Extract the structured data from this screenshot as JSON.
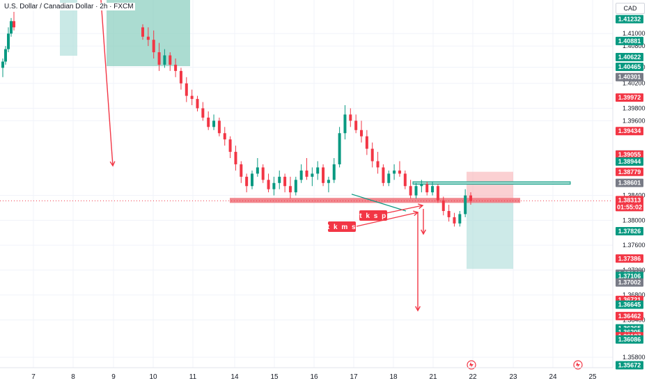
{
  "header": {
    "title": "U.S. Dollar / Canadian Dollar · 2h · FXCM",
    "currency": "CAD"
  },
  "chart_data": {
    "type": "candlestick",
    "title": "U.S. Dollar / Canadian Dollar · 2h · FXCM",
    "y_axis": {
      "range": [
        1.357,
        1.4145
      ],
      "ticks": [
        "1.41000",
        "1.40800",
        "1.40460",
        "1.40200",
        "1.39800",
        "1.39600",
        "1.38400",
        "1.38000",
        "1.37600",
        "1.37200",
        "1.36800",
        "1.36400",
        "1.35800"
      ]
    },
    "x_axis": {
      "ticks": [
        "7",
        "8",
        "9",
        "10",
        "11",
        "14",
        "15",
        "16",
        "17",
        "18",
        "21",
        "22",
        "23",
        "24",
        "25"
      ]
    },
    "price_labels": [
      {
        "value": "1.41232",
        "color": "#089981"
      },
      {
        "value": "1.40881",
        "color": "#089981"
      },
      {
        "value": "1.40622",
        "color": "#089981"
      },
      {
        "value": "1.40465",
        "color": "#089981"
      },
      {
        "value": "1.40301",
        "color": "#787b86"
      },
      {
        "value": "1.39972",
        "color": "#f23645"
      },
      {
        "value": "1.39434",
        "color": "#f23645"
      },
      {
        "value": "1.39057",
        "color": "#787b86"
      },
      {
        "value": "1.39055",
        "color": "#f23645"
      },
      {
        "value": "1.38944",
        "color": "#089981"
      },
      {
        "value": "1.38779",
        "color": "#f23645"
      },
      {
        "value": "1.38601",
        "color": "#787b86"
      },
      {
        "value": "1.38313",
        "color": "#f23645"
      },
      {
        "value": "1.38308",
        "color": "#787b86"
      },
      {
        "value": "1.37826",
        "color": "#089981"
      },
      {
        "value": "1.37386",
        "color": "#f23645"
      },
      {
        "value": "1.37141",
        "color": "#787b86"
      },
      {
        "value": "1.37106",
        "color": "#089981"
      },
      {
        "value": "1.37002",
        "color": "#787b86"
      },
      {
        "value": "1.36721",
        "color": "#f23645"
      },
      {
        "value": "1.36645",
        "color": "#089981"
      },
      {
        "value": "1.36462",
        "color": "#f23645"
      },
      {
        "value": "1.36265",
        "color": "#089981"
      },
      {
        "value": "1.36205",
        "color": "#089981"
      },
      {
        "value": "1.36137",
        "color": "#f23645"
      },
      {
        "value": "1.36086",
        "color": "#089981"
      },
      {
        "value": "1.35672",
        "color": "#089981"
      }
    ],
    "current_price": {
      "value": "1.38313",
      "countdown": "01:55:02",
      "color": "#f23645"
    },
    "annotations": [
      {
        "text": "t k s p",
        "color": "#f23645"
      },
      {
        "text": "t k m s",
        "color": "#f23645"
      }
    ],
    "candles_ohlc": [
      [
        1.4045,
        1.406,
        1.403,
        1.4055
      ],
      [
        1.4055,
        1.408,
        1.405,
        1.4075
      ],
      [
        1.4075,
        1.411,
        1.407,
        1.41
      ],
      [
        1.41,
        1.4125,
        1.4095,
        1.412
      ],
      [
        1.412,
        1.4135,
        1.4105,
        1.411
      ],
      [
        1.411,
        1.4115,
        1.409,
        1.4095
      ],
      [
        1.4095,
        1.411,
        1.408,
        1.409
      ],
      [
        1.409,
        1.4105,
        1.406,
        1.407
      ],
      [
        1.407,
        1.4085,
        1.404,
        1.405
      ],
      [
        1.405,
        1.4075,
        1.4045,
        1.4065
      ],
      [
        1.4065,
        1.407,
        1.404,
        1.405
      ],
      [
        1.405,
        1.406,
        1.403,
        1.404
      ],
      [
        1.404,
        1.4045,
        1.401,
        1.402
      ],
      [
        1.402,
        1.403,
        1.399,
        1.4
      ],
      [
        1.4,
        1.401,
        1.3985,
        1.3995
      ],
      [
        1.3995,
        1.4,
        1.3975,
        1.398
      ],
      [
        1.398,
        1.399,
        1.396,
        1.3965
      ],
      [
        1.3965,
        1.3975,
        1.3945,
        1.395
      ],
      [
        1.395,
        1.397,
        1.3945,
        1.396
      ],
      [
        1.396,
        1.3965,
        1.3935,
        1.394
      ],
      [
        1.394,
        1.395,
        1.392,
        1.393
      ],
      [
        1.393,
        1.3935,
        1.39,
        1.391
      ],
      [
        1.391,
        1.392,
        1.388,
        1.389
      ],
      [
        1.389,
        1.3895,
        1.386,
        1.387
      ],
      [
        1.387,
        1.3875,
        1.3845,
        1.3855
      ],
      [
        1.3855,
        1.388,
        1.385,
        1.3875
      ],
      [
        1.3875,
        1.39,
        1.387,
        1.3885
      ],
      [
        1.3885,
        1.389,
        1.386,
        1.3865
      ],
      [
        1.3865,
        1.3875,
        1.3845,
        1.385
      ],
      [
        1.385,
        1.387,
        1.384,
        1.386
      ],
      [
        1.386,
        1.388,
        1.385,
        1.387
      ],
      [
        1.387,
        1.3875,
        1.3845,
        1.3855
      ],
      [
        1.3855,
        1.387,
        1.3835,
        1.3845
      ],
      [
        1.3845,
        1.387,
        1.384,
        1.3865
      ],
      [
        1.3865,
        1.389,
        1.386,
        1.388
      ],
      [
        1.388,
        1.39,
        1.3865,
        1.387
      ],
      [
        1.387,
        1.3885,
        1.3855,
        1.3875
      ],
      [
        1.3875,
        1.3895,
        1.3865,
        1.3885
      ],
      [
        1.3885,
        1.389,
        1.3855,
        1.386
      ],
      [
        1.386,
        1.387,
        1.3845,
        1.3865
      ],
      [
        1.3865,
        1.39,
        1.386,
        1.389
      ],
      [
        1.389,
        1.395,
        1.3885,
        1.394
      ],
      [
        1.394,
        1.3985,
        1.393,
        1.397
      ],
      [
        1.397,
        1.398,
        1.395,
        1.396
      ],
      [
        1.396,
        1.397,
        1.394,
        1.3945
      ],
      [
        1.3945,
        1.396,
        1.3925,
        1.3935
      ],
      [
        1.3935,
        1.3945,
        1.3905,
        1.3915
      ],
      [
        1.3915,
        1.3925,
        1.3885,
        1.3895
      ],
      [
        1.3895,
        1.391,
        1.3875,
        1.3885
      ],
      [
        1.3885,
        1.389,
        1.3855,
        1.386
      ],
      [
        1.386,
        1.388,
        1.3855,
        1.3875
      ],
      [
        1.3875,
        1.389,
        1.3865,
        1.388
      ],
      [
        1.388,
        1.3895,
        1.387,
        1.3875
      ],
      [
        1.3875,
        1.388,
        1.385,
        1.3855
      ],
      [
        1.3855,
        1.3865,
        1.3835,
        1.384
      ],
      [
        1.384,
        1.386,
        1.3835,
        1.3855
      ],
      [
        1.3855,
        1.3865,
        1.3845,
        1.3858
      ],
      [
        1.3858,
        1.3862,
        1.384,
        1.3845
      ],
      [
        1.3845,
        1.3862,
        1.384,
        1.3855
      ],
      [
        1.3855,
        1.3858,
        1.3828,
        1.3832
      ],
      [
        1.3832,
        1.3838,
        1.3808,
        1.3815
      ],
      [
        1.3815,
        1.3825,
        1.3798,
        1.3805
      ],
      [
        1.3805,
        1.3812,
        1.379,
        1.3795
      ],
      [
        1.3795,
        1.3815,
        1.379,
        1.381
      ],
      [
        1.381,
        1.385,
        1.3805,
        1.384
      ],
      [
        1.384,
        1.3845,
        1.3825,
        1.3831
      ]
    ],
    "levels": {
      "support_zone": [
        1.3828,
        1.3836
      ],
      "resistance_zone": [
        1.3858,
        1.3862
      ],
      "risk_box": [
        1.3831,
        1.3878
      ],
      "target_box": [
        1.3722,
        1.3831
      ]
    }
  }
}
